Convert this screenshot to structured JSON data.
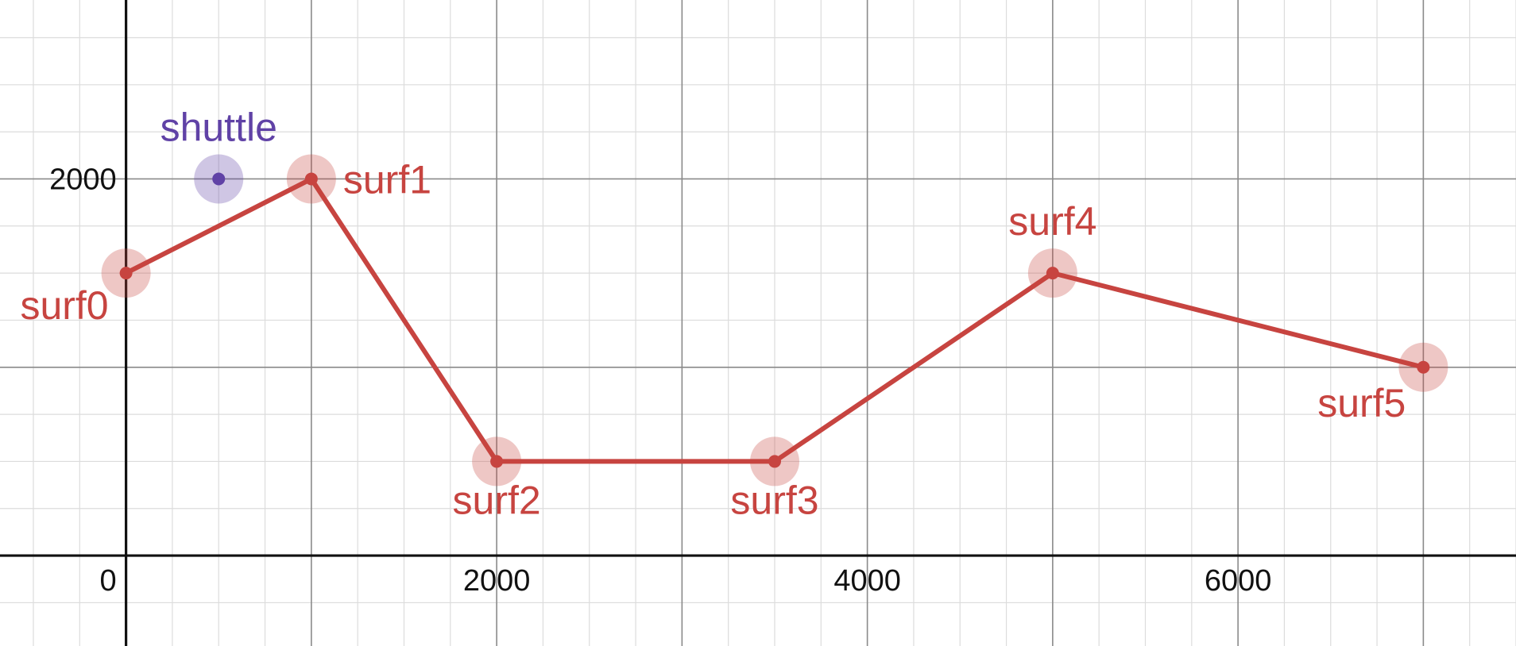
{
  "chart_data": {
    "type": "line",
    "xlim": [
      -680,
      7500
    ],
    "ylim": [
      -480,
      2950
    ],
    "grid": true,
    "x_ticks": [
      {
        "value": 0,
        "label": "0"
      },
      {
        "value": 2000,
        "label": "2000"
      },
      {
        "value": 4000,
        "label": "4000"
      },
      {
        "value": 6000,
        "label": "6000"
      }
    ],
    "y_ticks": [
      {
        "value": 2000,
        "label": "2000"
      }
    ],
    "series": [
      {
        "color": "#c74440",
        "points": [
          {
            "label": "surf0",
            "x": 0,
            "y": 1500
          },
          {
            "label": "surf1",
            "x": 1000,
            "y": 2000
          },
          {
            "label": "surf2",
            "x": 2000,
            "y": 500
          },
          {
            "label": "surf3",
            "x": 3500,
            "y": 500
          },
          {
            "label": "surf4",
            "x": 5000,
            "y": 1500
          },
          {
            "label": "surf5",
            "x": 7000,
            "y": 1000
          }
        ]
      },
      {
        "color": "#6042a6",
        "points": [
          {
            "label": "shuttle",
            "x": 500,
            "y": 2000
          }
        ]
      }
    ]
  }
}
